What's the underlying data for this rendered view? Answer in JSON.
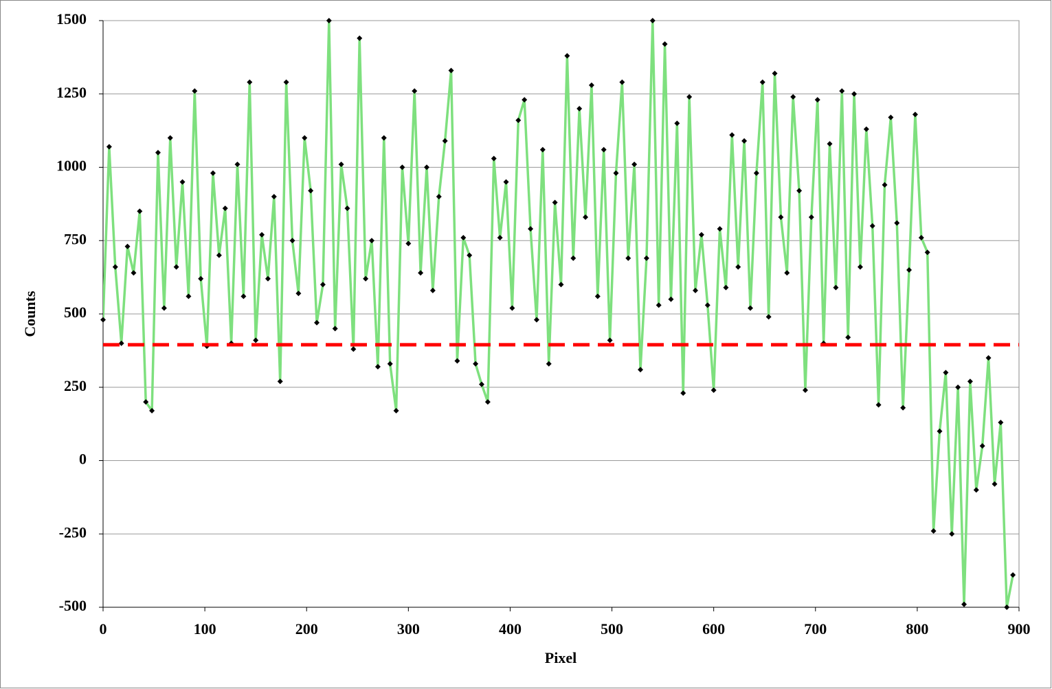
{
  "chart_data": {
    "type": "line",
    "x_label": "Pixel",
    "y_label": "Counts",
    "x": [
      0,
      6,
      12,
      18,
      24,
      30,
      36,
      42,
      48,
      54,
      60,
      66,
      72,
      78,
      84,
      90,
      96,
      102,
      108,
      114,
      120,
      126,
      132,
      138,
      144,
      150,
      156,
      162,
      168,
      174,
      180,
      186,
      192,
      198,
      204,
      210,
      216,
      222,
      228,
      234,
      240,
      246,
      252,
      258,
      264,
      270,
      276,
      282,
      288,
      294,
      300,
      306,
      312,
      318,
      324,
      330,
      336,
      342,
      348,
      354,
      360,
      366,
      372,
      378,
      384,
      390,
      396,
      402,
      408,
      414,
      420,
      426,
      432,
      438,
      444,
      450,
      456,
      462,
      468,
      474,
      480,
      486,
      492,
      498,
      504,
      510,
      516,
      522,
      528,
      534,
      540,
      546,
      552,
      558,
      564,
      570,
      576,
      582,
      588,
      594,
      600,
      606,
      612,
      618,
      624,
      630,
      636,
      642,
      648,
      654,
      660,
      666,
      672,
      678,
      684,
      690,
      696,
      702,
      708,
      714,
      720,
      726,
      732,
      738,
      744,
      750,
      756,
      762,
      768,
      774,
      780,
      786,
      792,
      798,
      804,
      810,
      816,
      822,
      828,
      834,
      840,
      846,
      852,
      858,
      864,
      870,
      876,
      882,
      888,
      894
    ],
    "series": [
      {
        "name": "Counts",
        "color": "#7ee07e",
        "marker_color": "#000000",
        "values": [
          480,
          1070,
          660,
          400,
          730,
          640,
          850,
          200,
          170,
          1050,
          520,
          1100,
          660,
          950,
          560,
          1260,
          620,
          390,
          980,
          700,
          860,
          400,
          1010,
          560,
          1290,
          410,
          770,
          620,
          900,
          270,
          1290,
          750,
          570,
          1100,
          920,
          470,
          600,
          1500,
          450,
          1010,
          860,
          380,
          1440,
          620,
          750,
          320,
          1100,
          330,
          170,
          1000,
          740,
          1260,
          640,
          1000,
          580,
          900,
          1090,
          1330,
          340,
          760,
          700,
          330,
          260,
          200,
          1030,
          760,
          950,
          520,
          1160,
          1230,
          790,
          480,
          1060,
          330,
          880,
          600,
          1380,
          690,
          1200,
          830,
          1280,
          560,
          1060,
          410,
          980,
          1290,
          690,
          1010,
          310,
          690,
          1500,
          530,
          1420,
          550,
          1150,
          230,
          1240,
          580,
          770,
          530,
          240,
          790,
          590,
          1110,
          660,
          1090,
          520,
          980,
          1290,
          490,
          1320,
          830,
          640,
          1240,
          920,
          240,
          830,
          1230,
          400,
          1080,
          590,
          1260,
          420,
          1250,
          660,
          1130,
          800,
          190,
          940,
          1170,
          810,
          180,
          650,
          1180,
          760,
          710,
          -240,
          100,
          300,
          -250,
          250,
          -490,
          270,
          -100,
          50,
          350,
          -80,
          130,
          -500,
          -390
        ]
      }
    ],
    "reference_line": {
      "value": 395,
      "color": "#ff0000"
    },
    "xlim": [
      0,
      900
    ],
    "xticks": [
      0,
      100,
      200,
      300,
      400,
      500,
      600,
      700,
      800,
      900
    ],
    "ylim": [
      -500,
      1500
    ],
    "yticks": [
      -500,
      -250,
      0,
      250,
      500,
      750,
      1000,
      1250,
      1500
    ],
    "grid": true
  }
}
